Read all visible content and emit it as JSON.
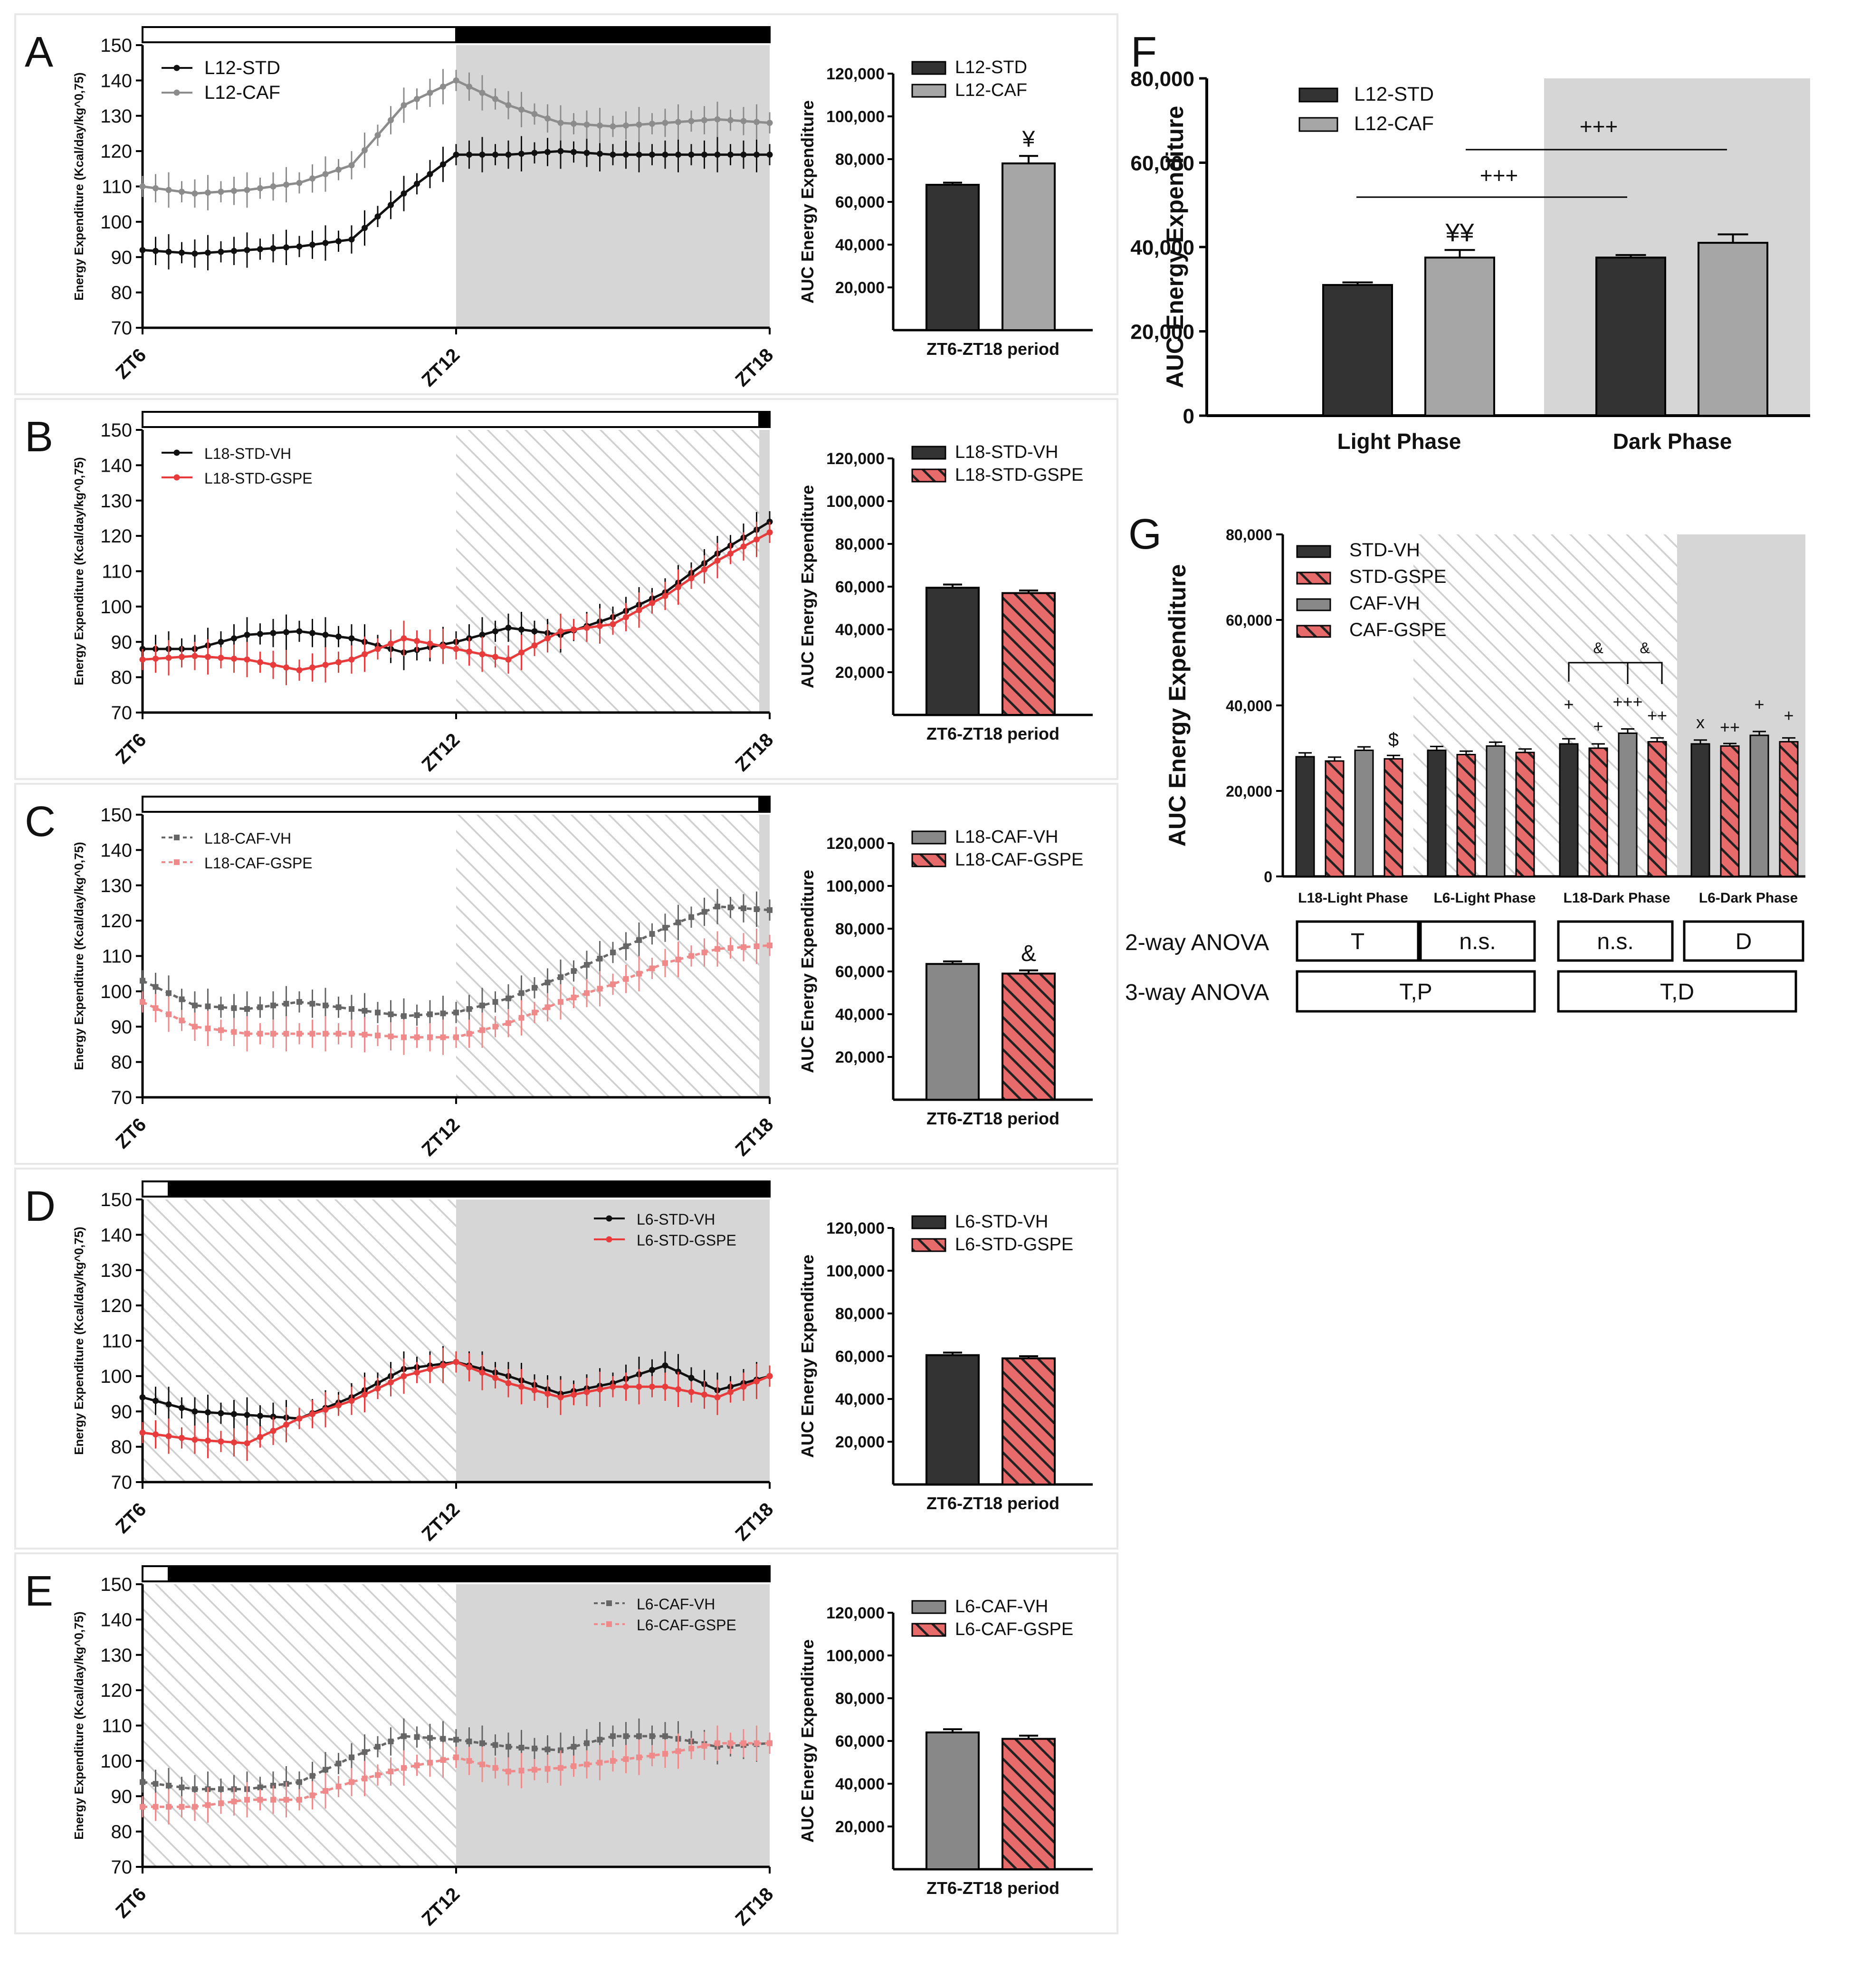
{
  "figure": {
    "axis_label_ee": "Energy Expenditure (Kcal/day/kg^0,75)",
    "axis_label_auc": "AUC Energy Expenditure",
    "period_label": "ZT6-ZT18 period",
    "x_ticks": [
      "ZT6",
      "ZT12",
      "ZT18"
    ]
  },
  "colors": {
    "std": "#111111",
    "caf_grey": "#8c8c8c",
    "red": "#e83c3c",
    "pink": "#f08a8a",
    "bar_dark": "#333333",
    "bar_grey": "#888888",
    "bar_light_grey": "#a6a6a6",
    "dark_phase": "#d6d6d6"
  },
  "chart_data": [
    {
      "panel": "A",
      "type": "line",
      "xlabel": "",
      "ylabel": "Energy Expenditure (Kcal/day/kg^0,75)",
      "ylim": [
        70,
        150
      ],
      "xlim": [
        6,
        18
      ],
      "light_until": 12,
      "series": [
        {
          "name": "L12-STD",
          "x": [
            6,
            7,
            8,
            9,
            10,
            11,
            12,
            13,
            14,
            15,
            16,
            17,
            18
          ],
          "values": [
            92,
            91,
            92,
            93,
            95,
            108,
            119,
            119,
            120,
            119,
            119,
            119,
            119
          ]
        },
        {
          "name": "L12-CAF",
          "x": [
            6,
            7,
            8,
            9,
            10,
            11,
            12,
            13,
            14,
            15,
            16,
            17,
            18
          ],
          "values": [
            110,
            108,
            109,
            111,
            116,
            133,
            140,
            133,
            128,
            127,
            128,
            129,
            128
          ]
        }
      ]
    },
    {
      "panel": "A-AUC",
      "type": "bar",
      "ylim": [
        0,
        120000
      ],
      "categories": [
        "L12-STD",
        "L12-CAF"
      ],
      "values": [
        68000,
        78000
      ],
      "errors": [
        1000,
        3500
      ],
      "annotation": "¥"
    },
    {
      "panel": "B",
      "type": "line",
      "ylim": [
        70,
        150
      ],
      "xlim": [
        6,
        18
      ],
      "light_until": 17.8,
      "series": [
        {
          "name": "L18-STD-VH",
          "x": [
            6,
            7,
            8,
            9,
            10,
            11,
            12,
            13,
            14,
            15,
            16,
            17,
            18
          ],
          "values": [
            88,
            88,
            92,
            93,
            91,
            87,
            90,
            94,
            92,
            97,
            104,
            115,
            124
          ]
        },
        {
          "name": "L18-STD-GSPE",
          "x": [
            6,
            7,
            8,
            9,
            10,
            11,
            12,
            13,
            14,
            15,
            16,
            17,
            18
          ],
          "values": [
            85,
            86,
            85,
            82,
            85,
            91,
            88,
            85,
            93,
            95,
            103,
            113,
            121
          ]
        }
      ]
    },
    {
      "panel": "B-AUC",
      "type": "bar",
      "ylim": [
        0,
        120000
      ],
      "categories": [
        "L18-STD-VH",
        "L18-STD-GSPE"
      ],
      "values": [
        59500,
        57000
      ],
      "errors": [
        1500,
        1200
      ]
    },
    {
      "panel": "C",
      "type": "line",
      "ylim": [
        70,
        150
      ],
      "xlim": [
        6,
        18
      ],
      "light_until": 17.8,
      "series": [
        {
          "name": "L18-CAF-VH",
          "x": [
            6,
            7,
            8,
            9,
            10,
            11,
            12,
            13,
            14,
            15,
            16,
            17,
            18
          ],
          "values": [
            103,
            96,
            95,
            97,
            95,
            93,
            94,
            98,
            104,
            111,
            118,
            124,
            123
          ]
        },
        {
          "name": "L18-CAF-GSPE",
          "x": [
            6,
            7,
            8,
            9,
            10,
            11,
            12,
            13,
            14,
            15,
            16,
            17,
            18
          ],
          "values": [
            97,
            90,
            88,
            88,
            88,
            87,
            87,
            91,
            97,
            102,
            108,
            112,
            113
          ]
        }
      ]
    },
    {
      "panel": "C-AUC",
      "type": "bar",
      "ylim": [
        0,
        120000
      ],
      "categories": [
        "L18-CAF-VH",
        "L18-CAF-GSPE"
      ],
      "values": [
        63500,
        59000
      ],
      "errors": [
        1200,
        1500
      ],
      "annotation": "&"
    },
    {
      "panel": "D",
      "type": "line",
      "ylim": [
        70,
        150
      ],
      "xlim": [
        6,
        18
      ],
      "light_until": 6.5,
      "series": [
        {
          "name": "L6-STD-VH",
          "x": [
            6,
            7,
            8,
            9,
            10,
            11,
            12,
            13,
            14,
            15,
            16,
            17,
            18
          ],
          "values": [
            94,
            90,
            89,
            88,
            94,
            102,
            104,
            100,
            95,
            98,
            103,
            96,
            100
          ]
        },
        {
          "name": "L6-STD-GSPE",
          "x": [
            6,
            7,
            8,
            9,
            10,
            11,
            12,
            13,
            14,
            15,
            16,
            17,
            18
          ],
          "values": [
            84,
            82,
            81,
            88,
            93,
            100,
            104,
            98,
            94,
            97,
            97,
            94,
            100
          ]
        }
      ]
    },
    {
      "panel": "D-AUC",
      "type": "bar",
      "ylim": [
        0,
        120000
      ],
      "categories": [
        "L6-STD-VH",
        "L6-STD-GSPE"
      ],
      "values": [
        60500,
        59000
      ],
      "errors": [
        1200,
        1000
      ]
    },
    {
      "panel": "E",
      "type": "line",
      "ylim": [
        70,
        150
      ],
      "xlim": [
        6,
        18
      ],
      "light_until": 6.5,
      "series": [
        {
          "name": "L6-CAF-VH",
          "x": [
            6,
            7,
            8,
            9,
            10,
            11,
            12,
            13,
            14,
            15,
            16,
            17,
            18
          ],
          "values": [
            94,
            92,
            92,
            94,
            101,
            107,
            106,
            104,
            103,
            107,
            107,
            104,
            105
          ]
        },
        {
          "name": "L6-CAF-GSPE",
          "x": [
            6,
            7,
            8,
            9,
            10,
            11,
            12,
            13,
            14,
            15,
            16,
            17,
            18
          ],
          "values": [
            87,
            87,
            89,
            89,
            94,
            98,
            101,
            97,
            98,
            100,
            102,
            105,
            105
          ]
        }
      ]
    },
    {
      "panel": "E-AUC",
      "type": "bar",
      "ylim": [
        0,
        120000
      ],
      "categories": [
        "L6-CAF-VH",
        "L6-CAF-GSPE"
      ],
      "values": [
        64000,
        61000
      ],
      "errors": [
        1500,
        1500
      ]
    },
    {
      "panel": "F",
      "type": "bar",
      "ylim": [
        0,
        80000
      ],
      "ylabel": "AUC Energy Expenditure",
      "categories": [
        "Light Phase",
        "Dark Phase"
      ],
      "series": [
        {
          "name": "L12-STD",
          "values": [
            31000,
            37500
          ],
          "errors": [
            600,
            600
          ]
        },
        {
          "name": "L12-CAF",
          "values": [
            37500,
            41000
          ],
          "errors": [
            1800,
            2000
          ]
        }
      ],
      "annotations": [
        "¥¥",
        "+++",
        "+++"
      ]
    },
    {
      "panel": "G",
      "type": "bar",
      "ylim": [
        0,
        80000
      ],
      "ylabel": "AUC Energy Expenditure",
      "categories": [
        "L18-Light Phase",
        "L6-Light Phase",
        "L18-Dark Phase",
        "L6-Dark Phase"
      ],
      "series": [
        {
          "name": "STD-VH",
          "values": [
            28000,
            29500,
            31000,
            31000
          ],
          "errors": [
            900,
            900,
            1200,
            900
          ]
        },
        {
          "name": "STD-GSPE",
          "values": [
            27000,
            28500,
            30000,
            30500
          ],
          "errors": [
            900,
            800,
            1000,
            600
          ]
        },
        {
          "name": "CAF-VH",
          "values": [
            29500,
            30500,
            33500,
            33000
          ],
          "errors": [
            800,
            900,
            1000,
            900
          ]
        },
        {
          "name": "CAF-GSPE",
          "values": [
            27500,
            29000,
            31500,
            31500
          ],
          "errors": [
            800,
            800,
            900,
            900
          ]
        }
      ],
      "annotations": {
        "light_l18_caf_gspe": "$",
        "dark_l18": [
          "+",
          "+",
          "+++",
          "++"
        ],
        "dark_l18_bracket": "&",
        "dark_l6": [
          "x",
          "++",
          "+",
          "+"
        ]
      },
      "anova": {
        "two_way_label": "2-way ANOVA",
        "two_way": [
          "T",
          "n.s.",
          "n.s.",
          "D"
        ],
        "three_way_label": "3-way ANOVA",
        "three_way": [
          "T,P",
          "T,D"
        ]
      }
    }
  ]
}
